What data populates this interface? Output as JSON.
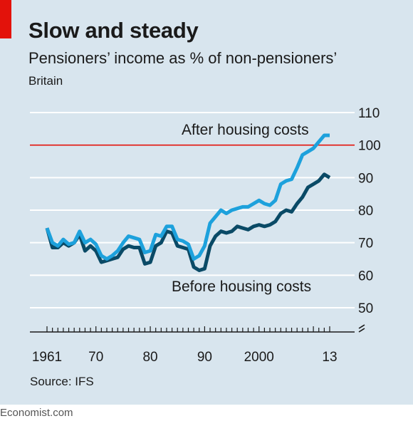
{
  "header": {
    "title": "Slow and steady",
    "subtitle": "Pensioners’ income as % of non-pensioners’",
    "region": "Britain"
  },
  "footer": {
    "source": "Source: IFS",
    "brand": "Economist.com"
  },
  "colors": {
    "background": "#d8e5ee",
    "accent_red": "#e3120b",
    "after_housing": "#1da1dc",
    "before_housing": "#0a4a66",
    "gridline": "#ffffff",
    "reference_line": "#e3120b"
  },
  "chart_data": {
    "type": "line",
    "title": "Slow and steady",
    "subtitle": "Pensioners’ income as % of non-pensioners’",
    "xlabel": "",
    "ylabel": "",
    "xlim": [
      1961,
      2013
    ],
    "ylim": [
      45,
      110
    ],
    "y_axis_break": true,
    "y_ticks": [
      50,
      60,
      70,
      80,
      90,
      100,
      110
    ],
    "x_tick_labels": [
      {
        "x": 1961,
        "label": "1961"
      },
      {
        "x": 1970,
        "label": "70"
      },
      {
        "x": 1980,
        "label": "80"
      },
      {
        "x": 1990,
        "label": "90"
      },
      {
        "x": 2000,
        "label": "2000"
      },
      {
        "x": 2013,
        "label": "13"
      }
    ],
    "reference_line": {
      "y": 100
    },
    "grid": true,
    "y_axis_side": "right",
    "series": [
      {
        "name": "After housing costs",
        "color": "#1da1dc",
        "x": [
          1961,
          1962,
          1963,
          1964,
          1965,
          1966,
          1967,
          1968,
          1969,
          1970,
          1971,
          1972,
          1973,
          1974,
          1975,
          1976,
          1977,
          1978,
          1979,
          1980,
          1981,
          1982,
          1983,
          1984,
          1985,
          1986,
          1987,
          1988,
          1989,
          1990,
          1991,
          1992,
          1993,
          1994,
          1995,
          1996,
          1997,
          1998,
          1999,
          2000,
          2001,
          2002,
          2003,
          2004,
          2005,
          2006,
          2007,
          2008,
          2009,
          2010,
          2011,
          2012,
          2013
        ],
        "y": [
          74.5,
          70,
          69,
          71,
          69.5,
          70,
          73.5,
          70,
          71,
          69.5,
          66,
          65,
          66,
          67.5,
          70,
          72,
          71.5,
          71,
          67,
          67.5,
          72.5,
          72,
          75,
          75,
          71,
          70.5,
          69.5,
          65,
          66,
          69,
          76,
          78,
          80,
          79,
          80,
          80.5,
          81,
          81,
          82,
          83,
          82,
          81.5,
          83,
          88,
          89,
          89.5,
          93,
          97,
          98,
          99,
          101,
          103,
          103
        ]
      },
      {
        "name": "Before housing costs",
        "color": "#0a4a66",
        "x": [
          1961,
          1962,
          1963,
          1964,
          1965,
          1966,
          1967,
          1968,
          1969,
          1970,
          1971,
          1972,
          1973,
          1974,
          1975,
          1976,
          1977,
          1978,
          1979,
          1980,
          1981,
          1982,
          1983,
          1984,
          1985,
          1986,
          1987,
          1988,
          1989,
          1990,
          1991,
          1992,
          1993,
          1994,
          1995,
          1996,
          1997,
          1998,
          1999,
          2000,
          2001,
          2002,
          2003,
          2004,
          2005,
          2006,
          2007,
          2008,
          2009,
          2010,
          2011,
          2012,
          2013
        ],
        "y": [
          74.5,
          68.5,
          68.5,
          70,
          69,
          70,
          72.5,
          67.5,
          69,
          67.5,
          64,
          64.5,
          65,
          65.5,
          68,
          69,
          68.5,
          68.5,
          63.5,
          64,
          69,
          70,
          73.5,
          73,
          69,
          68.5,
          68,
          62.5,
          61.5,
          62,
          69,
          72,
          73.5,
          73,
          73.5,
          75,
          74.5,
          74,
          75,
          75.5,
          75,
          75.5,
          76.5,
          79,
          80,
          79.5,
          82,
          84,
          87,
          88,
          89,
          91,
          90
        ]
      }
    ],
    "annotations": [
      {
        "text": "After housing costs",
        "x": 1998,
        "y": 104.5
      },
      {
        "text": "Before housing costs",
        "x": 1987,
        "y": 57.5
      }
    ]
  }
}
